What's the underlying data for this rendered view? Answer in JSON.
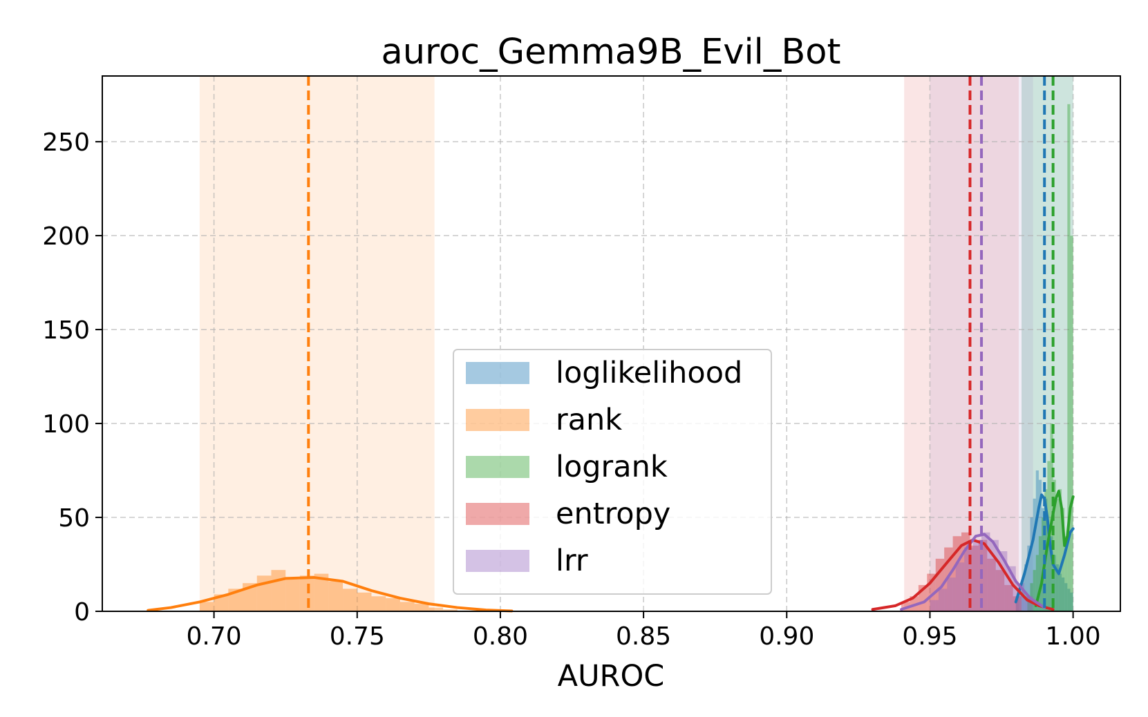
{
  "chart_data": {
    "type": "histogram",
    "title": "auroc_Gemma9B_Evil_Bot",
    "xlabel": "AUROC",
    "ylabel": "",
    "xlim": [
      0.661,
      1.0165
    ],
    "ylim": [
      0,
      285
    ],
    "xticks": [
      "0.70",
      "0.75",
      "0.80",
      "0.85",
      "0.90",
      "0.95",
      "1.00"
    ],
    "xtick_values": [
      0.7,
      0.75,
      0.8,
      0.85,
      0.9,
      0.95,
      1.0
    ],
    "yticks": [
      "0",
      "50",
      "100",
      "150",
      "200",
      "250"
    ],
    "ytick_values": [
      0,
      50,
      100,
      150,
      200,
      250
    ],
    "grid": true,
    "legend_position": "center-bottom",
    "series": [
      {
        "name": "loglikelihood",
        "color": "#1f77b4",
        "mean": 0.99,
        "ci": [
          0.982,
          1.0
        ],
        "hist_x": [
          0.9805,
          0.9815,
          0.9825,
          0.9835,
          0.9845,
          0.9855,
          0.9865,
          0.9875,
          0.9885,
          0.9895,
          0.9905,
          0.9915,
          0.9925,
          0.9935,
          0.9945,
          0.9955,
          0.9965,
          0.9975,
          0.9985,
          0.9995
        ],
        "hist_y": [
          8,
          12,
          18,
          25,
          35,
          50,
          60,
          75,
          70,
          55,
          60,
          45,
          40,
          30,
          25,
          20,
          18,
          15,
          12,
          10
        ],
        "kde_x": [
          0.98,
          0.983,
          0.986,
          0.988,
          0.989,
          0.99,
          0.991,
          0.992,
          0.993,
          0.995,
          0.997,
          0.999,
          1.0
        ],
        "kde_y": [
          5,
          20,
          38,
          55,
          62,
          60,
          50,
          35,
          25,
          20,
          30,
          42,
          44
        ]
      },
      {
        "name": "rank",
        "color": "#ff7f0e",
        "mean": 0.733,
        "ci": [
          0.695,
          0.777
        ],
        "hist_x": [
          0.6975,
          0.7025,
          0.7075,
          0.7125,
          0.7175,
          0.7225,
          0.7275,
          0.7325,
          0.7375,
          0.7425,
          0.7475,
          0.7525,
          0.7575,
          0.7625,
          0.7675,
          0.7725,
          0.7775,
          0.7825
        ],
        "hist_y": [
          5,
          9,
          12,
          15,
          19,
          22,
          17,
          19,
          20,
          16,
          12,
          10,
          8,
          7,
          5,
          4,
          2,
          1
        ],
        "kde_x": [
          0.677,
          0.685,
          0.695,
          0.705,
          0.715,
          0.725,
          0.735,
          0.745,
          0.755,
          0.765,
          0.775,
          0.785,
          0.795,
          0.804
        ],
        "kde_y": [
          0.5,
          2,
          5,
          9,
          14,
          17.5,
          18,
          16,
          11,
          7,
          4,
          2,
          0.7,
          0.2
        ]
      },
      {
        "name": "logrank",
        "color": "#2ca02c",
        "mean": 0.993,
        "ci": [
          0.982,
          1.0
        ],
        "hist_x": [
          0.9845,
          0.9855,
          0.9865,
          0.9875,
          0.9885,
          0.9895,
          0.9905,
          0.9915,
          0.9925,
          0.9935,
          0.9945,
          0.9955,
          0.9965,
          0.9975,
          0.9985,
          0.9995
        ],
        "hist_y": [
          8,
          15,
          22,
          30,
          40,
          50,
          65,
          80,
          100,
          70,
          60,
          65,
          55,
          40,
          270,
          200
        ],
        "kde_x": [
          0.987,
          0.989,
          0.991,
          0.993,
          0.994,
          0.995,
          0.996,
          0.997,
          0.998,
          0.999,
          1.0
        ],
        "kde_y": [
          3,
          15,
          35,
          52,
          60,
          64,
          55,
          35,
          40,
          55,
          61
        ]
      },
      {
        "name": "entropy",
        "color": "#d62728",
        "mean": 0.964,
        "ci": [
          0.941,
          0.981
        ],
        "hist_x": [
          0.9415,
          0.9445,
          0.9475,
          0.9505,
          0.9535,
          0.9565,
          0.9595,
          0.9625,
          0.9655,
          0.9685,
          0.9715,
          0.9745,
          0.9775,
          0.9805
        ],
        "hist_y": [
          5,
          8,
          14,
          20,
          28,
          34,
          40,
          42,
          35,
          38,
          28,
          22,
          14,
          8
        ],
        "kde_x": [
          0.93,
          0.938,
          0.944,
          0.95,
          0.956,
          0.961,
          0.965,
          0.969,
          0.974,
          0.979,
          0.984,
          0.988,
          0.993
        ],
        "kde_y": [
          1,
          3,
          7,
          15,
          26,
          35,
          38,
          36,
          26,
          14,
          6,
          3,
          1
        ]
      },
      {
        "name": "lrr",
        "color": "#9467bd",
        "mean": 0.968,
        "ci": [
          0.95,
          0.986
        ],
        "hist_x": [
          0.9515,
          0.9545,
          0.9575,
          0.9605,
          0.9635,
          0.9665,
          0.9695,
          0.9725,
          0.9755,
          0.9785,
          0.9815,
          0.9845
        ],
        "hist_y": [
          6,
          12,
          18,
          26,
          34,
          38,
          42,
          38,
          32,
          24,
          15,
          8
        ],
        "kde_x": [
          0.94,
          0.948,
          0.954,
          0.958,
          0.962,
          0.966,
          0.969,
          0.972,
          0.976,
          0.98,
          0.985,
          0.99
        ],
        "kde_y": [
          1,
          5,
          13,
          22,
          32,
          40,
          41,
          37,
          27,
          16,
          7,
          2
        ]
      }
    ]
  }
}
